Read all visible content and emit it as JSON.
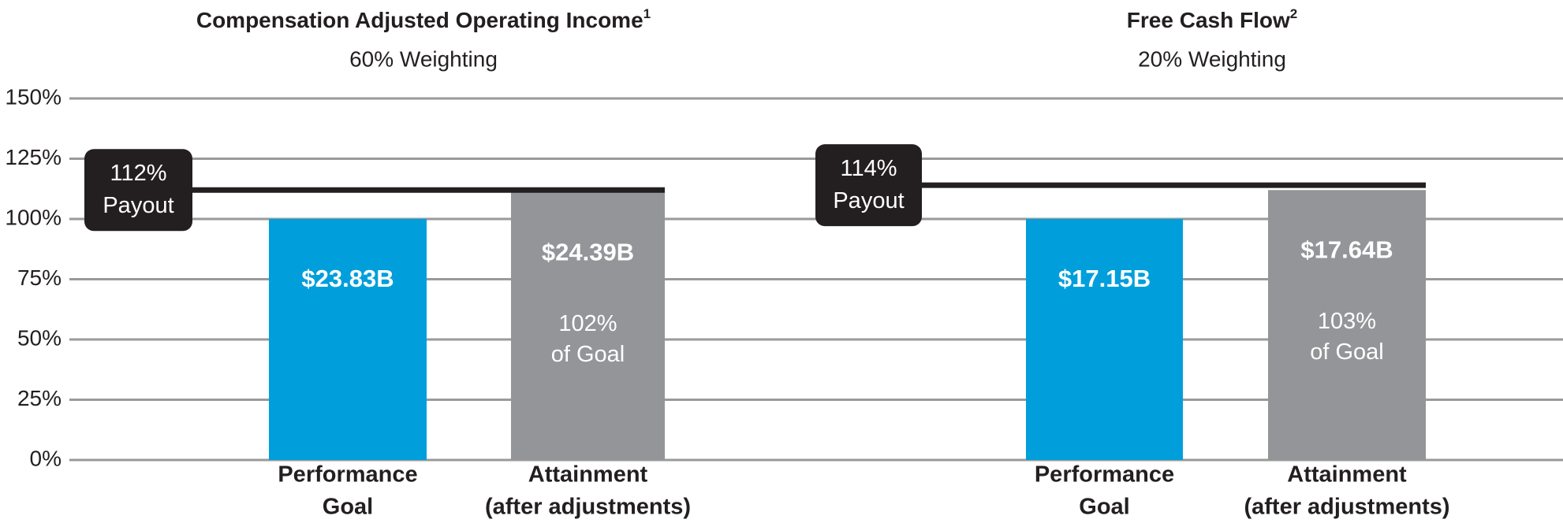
{
  "chart_data": [
    {
      "type": "bar",
      "title": "Compensation Adjusted Operating Income",
      "title_note": "1",
      "subtitle": "60% Weighting",
      "categories": [
        [
          "Performance",
          "Goal"
        ],
        [
          "Attainment",
          "(after adjustments)"
        ]
      ],
      "values": [
        100,
        111
      ],
      "colors": [
        "#009fdb",
        "#939598"
      ],
      "amounts": [
        "$23.83B",
        "$24.39B"
      ],
      "attainment_note": [
        "102%",
        "of Goal"
      ],
      "payout": {
        "value": 112,
        "label": "112%"
      },
      "payout_text": "Payout",
      "ylim": [
        0,
        150
      ],
      "yticks": [
        {
          "value": 0,
          "label": "0%"
        },
        {
          "value": 25,
          "label": "25%"
        },
        {
          "value": 50,
          "label": "50%"
        },
        {
          "value": 75,
          "label": "75%"
        },
        {
          "value": 100,
          "label": "100%"
        },
        {
          "value": 125,
          "label": "125%"
        },
        {
          "value": 150,
          "label": "150%"
        }
      ],
      "grid": true
    },
    {
      "type": "bar",
      "title": "Free Cash Flow",
      "title_note": "2",
      "subtitle": "20% Weighting",
      "categories": [
        [
          "Performance",
          "Goal"
        ],
        [
          "Attainment",
          "(after adjustments)"
        ]
      ],
      "values": [
        100,
        112
      ],
      "colors": [
        "#009fdb",
        "#939598"
      ],
      "amounts": [
        "$17.15B",
        "$17.64B"
      ],
      "attainment_note": [
        "103%",
        "of Goal"
      ],
      "payout": {
        "value": 114,
        "label": "114%"
      },
      "payout_text": "Payout"
    }
  ]
}
